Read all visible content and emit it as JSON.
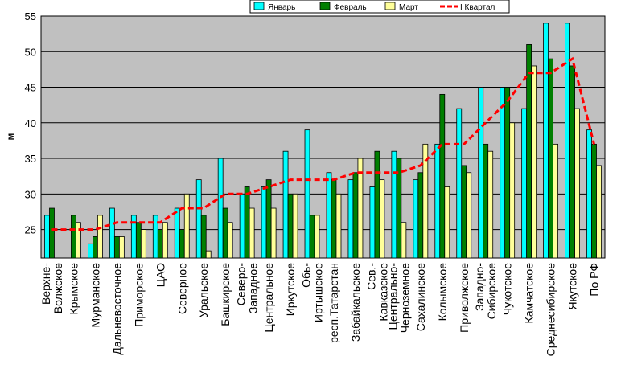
{
  "chart_data": {
    "type": "bar",
    "ylabel": "м",
    "ylim": [
      21,
      55
    ],
    "yticks": [
      25,
      30,
      35,
      40,
      45,
      50,
      55
    ],
    "grid": true,
    "legend_position": "top-right",
    "categories": [
      [
        "Верхне-",
        "Волжское"
      ],
      [
        "Крымское"
      ],
      [
        "Мурманское"
      ],
      [
        "Дальневосточное"
      ],
      [
        "Приморское"
      ],
      [
        "ЦАО"
      ],
      [
        "Северное"
      ],
      [
        "Уральское"
      ],
      [
        "Башкирское"
      ],
      [
        "Северо-",
        "Западное"
      ],
      [
        "Центральное"
      ],
      [
        "Иркутское"
      ],
      [
        "Обь-",
        "Иртышское"
      ],
      [
        "респ.Татарстан"
      ],
      [
        "Забайкальское"
      ],
      [
        "Сев.-",
        "Кавказское"
      ],
      [
        "Центрально-",
        "Черноземное"
      ],
      [
        "Сахалинское"
      ],
      [
        "Колымское"
      ],
      [
        "Приволжское"
      ],
      [
        "Западно-",
        "Сибирское"
      ],
      [
        "Чукотское"
      ],
      [
        "Камчатское"
      ],
      [
        "Среднесибирское"
      ],
      [
        "Якутское"
      ],
      [
        "По РФ"
      ]
    ],
    "series": [
      {
        "name": "Январь",
        "color": "#00ffff",
        "kind": "bar",
        "values": [
          27,
          20.5,
          23,
          28,
          27,
          27,
          28,
          32,
          35,
          30,
          31,
          36,
          39,
          33,
          32,
          31,
          36,
          32,
          37,
          42,
          45,
          45,
          42,
          54,
          54,
          39
        ]
      },
      {
        "name": "Февраль",
        "color": "#007f00",
        "kind": "bar",
        "values": [
          28,
          27,
          24,
          24,
          26,
          25,
          25,
          27,
          28,
          31,
          32,
          30,
          27,
          32,
          33,
          36,
          35,
          33,
          44,
          34,
          37,
          45,
          51,
          49,
          48,
          37
        ]
      },
      {
        "name": "Март",
        "color": "#ffff99",
        "kind": "bar",
        "values": [
          20.5,
          26,
          27,
          24,
          25,
          26,
          30,
          22,
          26,
          28,
          28,
          30,
          27,
          30,
          35,
          32,
          26,
          37,
          31,
          33,
          36,
          40,
          48,
          37,
          42,
          34
        ]
      },
      {
        "name": "I Квартал",
        "color": "#ff0000",
        "kind": "line",
        "values": [
          25,
          25,
          25,
          26,
          26,
          26,
          28,
          28,
          30,
          30,
          31,
          32,
          32,
          32,
          33,
          33,
          33,
          34,
          37,
          37,
          40,
          43,
          47,
          47,
          49,
          37
        ]
      }
    ]
  }
}
